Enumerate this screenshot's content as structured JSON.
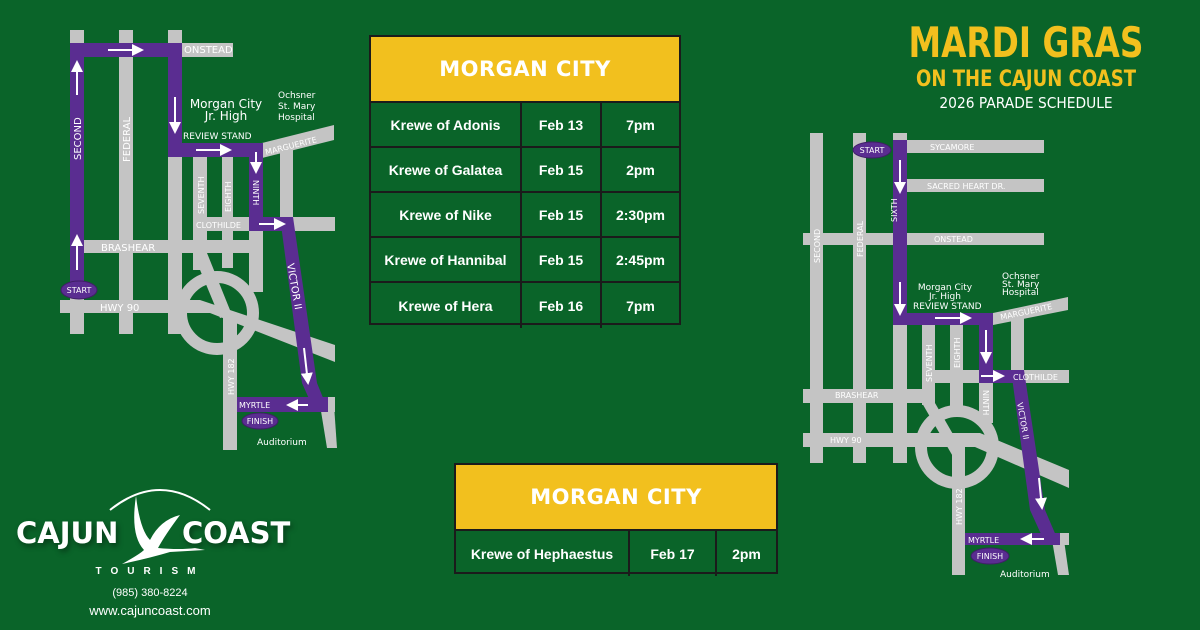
{
  "title": {
    "line1": "MARDI GRAS",
    "line2": "ON THE CAJUN COAST",
    "line3": "2026 PARADE SCHEDULE"
  },
  "colors": {
    "background": "#0a6429",
    "accent_yellow": "#f2c01e",
    "route_purple": "#5a2d91",
    "road_gray": "#c4c4c4"
  },
  "schedule_1": {
    "heading": "MORGAN CITY",
    "rows": [
      {
        "krewe": "Krewe of Adonis",
        "date": "Feb 13",
        "time": "7pm"
      },
      {
        "krewe": "Krewe of Galatea",
        "date": "Feb 15",
        "time": "2pm"
      },
      {
        "krewe": "Krewe of Nike",
        "date": "Feb 15",
        "time": "2:30pm"
      },
      {
        "krewe": "Krewe of Hannibal",
        "date": "Feb 15",
        "time": "2:45pm"
      },
      {
        "krewe": "Krewe of Hera",
        "date": "Feb 16",
        "time": "7pm"
      }
    ]
  },
  "schedule_2": {
    "heading": "MORGAN CITY",
    "rows": [
      {
        "krewe": "Krewe of Hephaestus",
        "date": "Feb 17",
        "time": "2pm"
      }
    ]
  },
  "map_left": {
    "streets": {
      "onstead": "ONSTEAD",
      "second": "SECOND",
      "federal": "FEDERAL",
      "seventh": "SEVENTH",
      "eighth": "EIGHTH",
      "ninth": "NINTH",
      "marguerite": "MARGUERITE",
      "clothilde": "CLOTHILDE",
      "brashear": "BRASHEAR",
      "hwy90": "HWY 90",
      "hwy182": "HWY 182",
      "victor": "VICTOR II",
      "myrtle": "MYRTLE"
    },
    "places": {
      "school1": "Morgan City",
      "school2": "Jr. High",
      "review": "REVIEW STAND",
      "hosp1": "Ochsner",
      "hosp2": "St.  Mary",
      "hosp3": "Hospital",
      "auditorium": "Auditorium"
    },
    "start": "START",
    "finish": "FINISH"
  },
  "map_right": {
    "streets": {
      "sycamore": "SYCAMORE",
      "sacred": "SACRED HEART DR.",
      "onstead": "ONSTEAD",
      "second": "SECOND",
      "federal": "FEDERAL",
      "sixth": "SIXTH",
      "seventh": "SEVENTH",
      "eighth": "EIGHTH",
      "ninth": "NINTH",
      "marguerite": "MARGUERITE",
      "clothilde": "CLOTHILDE",
      "brashear": "BRASHEAR",
      "hwy90": "HWY 90",
      "hwy182": "HWY 182",
      "victor": "VICTOR II",
      "myrtle": "MYRTLE"
    },
    "places": {
      "school1": "Morgan City",
      "school2": "Jr. High",
      "review": "REVIEW STAND",
      "hosp1": "Ochsner",
      "hosp2": "St. Mary",
      "hosp3": "Hospital",
      "auditorium": "Auditorium"
    },
    "start": "START",
    "finish": "FINISH"
  },
  "logo": {
    "word1": "CAJUN",
    "word2": "COAST",
    "tagline": "TOURISM",
    "icon": "heron-icon"
  },
  "contact": {
    "phone": "(985) 380-8224",
    "website": "www.cajuncoast.com"
  }
}
